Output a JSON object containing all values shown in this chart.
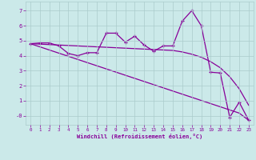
{
  "xlabel": "Windchill (Refroidissement éolien,°C)",
  "bg_color": "#cbe9e9",
  "line_color": "#880099",
  "grid_color": "#aacccc",
  "x_data": [
    0,
    1,
    2,
    3,
    4,
    5,
    6,
    7,
    8,
    9,
    10,
    11,
    12,
    13,
    14,
    15,
    16,
    17,
    18,
    19,
    20,
    21,
    22,
    23
  ],
  "y_jagged": [
    4.8,
    4.85,
    4.85,
    4.65,
    4.15,
    4.0,
    4.2,
    4.2,
    5.5,
    5.5,
    4.9,
    5.3,
    4.7,
    4.3,
    4.65,
    4.65,
    6.3,
    7.0,
    6.0,
    2.9,
    2.85,
    -0.1,
    0.9,
    -0.3
  ],
  "y_slow": [
    4.8,
    4.77,
    4.74,
    4.71,
    4.68,
    4.65,
    4.62,
    4.59,
    4.56,
    4.53,
    4.5,
    4.47,
    4.44,
    4.41,
    4.38,
    4.35,
    4.25,
    4.1,
    3.9,
    3.6,
    3.2,
    2.6,
    1.8,
    0.7
  ],
  "y_steep": [
    4.8,
    4.59,
    4.38,
    4.17,
    3.96,
    3.75,
    3.54,
    3.33,
    3.12,
    2.91,
    2.7,
    2.49,
    2.28,
    2.07,
    1.86,
    1.65,
    1.44,
    1.23,
    1.02,
    0.81,
    0.6,
    0.39,
    0.18,
    -0.3
  ],
  "ylim": [
    -0.6,
    7.6
  ],
  "xlim": [
    -0.5,
    23.5
  ],
  "yticks": [
    0,
    1,
    2,
    3,
    4,
    5,
    6,
    7
  ],
  "ytick_labels": [
    "-0",
    "1",
    "2",
    "3",
    "4",
    "5",
    "6",
    "7"
  ],
  "xticks": [
    0,
    1,
    2,
    3,
    4,
    5,
    6,
    7,
    8,
    9,
    10,
    11,
    12,
    13,
    14,
    15,
    16,
    17,
    18,
    19,
    20,
    21,
    22,
    23
  ]
}
